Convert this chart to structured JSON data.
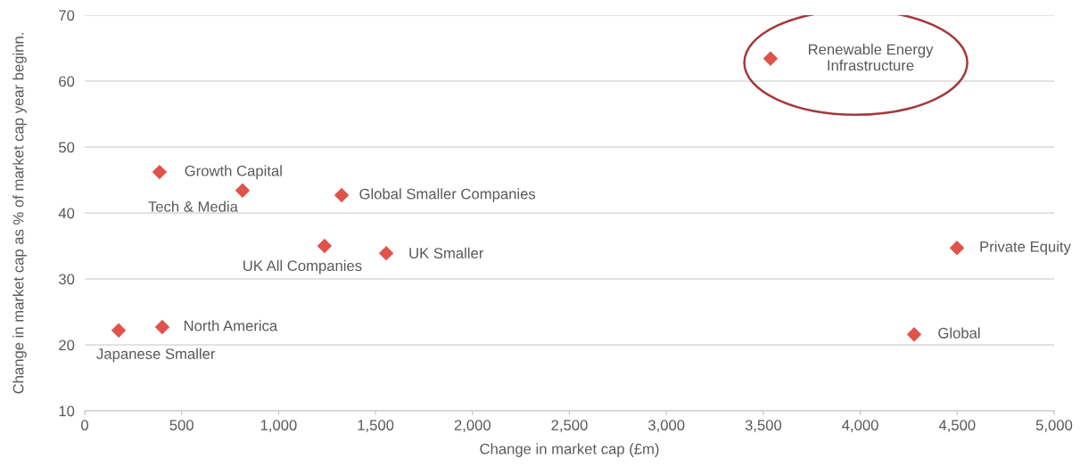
{
  "chart_data": {
    "type": "scatter",
    "xlabel": "Change in market cap (£m)",
    "ylabel": "Change in market cap as % of market cap year beginn.",
    "x": [
      3537,
      386,
      814,
      1325,
      1237,
      1555,
      4499,
      400,
      175,
      4278
    ],
    "series": [
      {
        "color": "#e0524a",
        "values": [
          63.4,
          46.2,
          43.4,
          42.7,
          35.0,
          33.9,
          34.7,
          22.7,
          22.2,
          21.6
        ]
      }
    ],
    "annotations": [
      {
        "text": "Renewable Energy\nInfrastructure",
        "x": 3537,
        "y": 63.4
      },
      {
        "text": "Growth Capital",
        "x": 386,
        "y": 46.2
      },
      {
        "text": "Tech & Media",
        "x": 814,
        "y": 43.4
      },
      {
        "text": "Global Smaller Companies",
        "x": 1325,
        "y": 42.7
      },
      {
        "text": "UK All Companies",
        "x": 1237,
        "y": 35.0
      },
      {
        "text": "UK Smaller",
        "x": 1555,
        "y": 33.9
      },
      {
        "text": "Private Equity",
        "x": 4499,
        "y": 34.7
      },
      {
        "text": "North America",
        "x": 400,
        "y": 22.7
      },
      {
        "text": "Japanese Smaller",
        "x": 175,
        "y": 22.2
      },
      {
        "text": "Global",
        "x": 4278,
        "y": 21.6
      }
    ],
    "xlim": [
      0,
      5000
    ],
    "ylim": [
      10,
      70
    ],
    "xticks": [
      0,
      500,
      {
        "value": 1000,
        "label": "1,000"
      },
      {
        "value": 1500,
        "label": "1,500"
      },
      {
        "value": 2000,
        "label": "2,000"
      },
      {
        "value": 2500,
        "label": "2,500"
      },
      {
        "value": 3000,
        "label": "3,000"
      },
      {
        "value": 3500,
        "label": "3,500"
      },
      {
        "value": 4000,
        "label": "4,000"
      },
      {
        "value": 4500,
        "label": "4,500"
      },
      {
        "value": 5000,
        "label": "5,000"
      }
    ],
    "yticks": [
      10,
      20,
      30,
      40,
      50,
      60,
      70
    ],
    "grid": "y",
    "marker": "diamond"
  }
}
